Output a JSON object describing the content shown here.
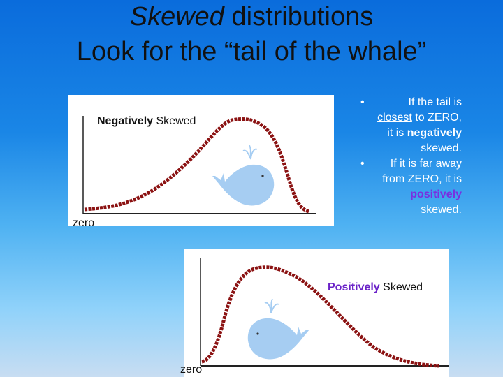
{
  "title": {
    "line1_em": "Skewed",
    "line1_rest": " distributions",
    "line2": "Look for the “tail of the whale”"
  },
  "charts": [
    {
      "label_bold": "Negatively",
      "label_rest": " Skewed",
      "zero_label": "zero"
    },
    {
      "label_bold": "Positively",
      "label_rest": " Skewed",
      "zero_label": "zero"
    }
  ],
  "bullets": [
    {
      "dot": "•",
      "t1": "If the tail is ",
      "u": "closest",
      "t2": " to ZERO, it is ",
      "b": "negatively",
      "t3": " skewed."
    },
    {
      "dot": "•",
      "t1": "If it is far away from ZERO, it is ",
      "b": "positively",
      "t3": " skewed."
    }
  ],
  "icons": [
    "whale-icon"
  ],
  "colors": {
    "curve": "#8b1212",
    "whale": "#a6cdf2",
    "positive": "#7a2ee0"
  }
}
